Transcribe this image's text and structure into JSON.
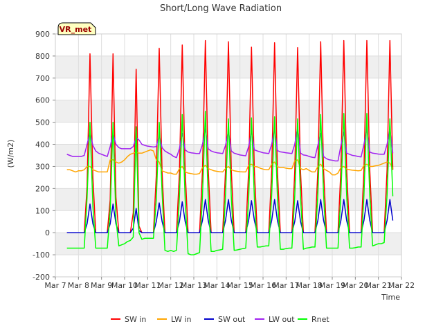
{
  "chart_data": {
    "type": "line",
    "title": "Short/Long Wave Radiation",
    "xlabel": "Time",
    "ylabel": "(W/m2)",
    "badge": "VR_met",
    "ylim": [
      -200,
      900
    ],
    "xlim": [
      "Mar 7",
      "Mar 22"
    ],
    "yticks": [
      -200,
      -100,
      0,
      100,
      200,
      300,
      400,
      500,
      600,
      700,
      800,
      900
    ],
    "xticks": [
      "Mar 7",
      "Mar 8",
      "Mar 9",
      "Mar 10",
      "Mar 11",
      "Mar 12",
      "Mar 13",
      "Mar 14",
      "Mar 15",
      "Mar 16",
      "Mar 17",
      "Mar 18",
      "Mar 19",
      "Mar 20",
      "Mar 21",
      "Mar 22"
    ],
    "grid": true,
    "banded_background": true,
    "legend_position": "bottom",
    "time_resolution": "3-hourly samples at 00,03,06,09,12,15,18,21 h, Mar 7 12:00 to Mar 21 15:00",
    "series": [
      {
        "name": "SW in",
        "color": "#ff0000",
        "start": "Mar 7 12:00",
        "step_hours": 3,
        "values": [
          0,
          0,
          0,
          0,
          0,
          0,
          0,
          210,
          810,
          250,
          0,
          0,
          0,
          0,
          0,
          150,
          810,
          160,
          0,
          0,
          0,
          0,
          0,
          90,
          740,
          30,
          0,
          0,
          0,
          0,
          0,
          260,
          835,
          270,
          0,
          0,
          0,
          0,
          0,
          270,
          850,
          280,
          0,
          0,
          0,
          0,
          0,
          280,
          870,
          290,
          0,
          0,
          0,
          0,
          0,
          280,
          865,
          280,
          0,
          0,
          0,
          0,
          0,
          280,
          840,
          280,
          0,
          0,
          0,
          0,
          0,
          280,
          860,
          280,
          0,
          0,
          0,
          0,
          0,
          275,
          838,
          275,
          0,
          0,
          0,
          0,
          0,
          280,
          865,
          280,
          0,
          0,
          0,
          0,
          0,
          285,
          870,
          285,
          0,
          0,
          0,
          0,
          0,
          285,
          870,
          285,
          0,
          0,
          0,
          0,
          0,
          285,
          870,
          285
        ]
      },
      {
        "name": "LW in",
        "color": "#ffa500",
        "start": "Mar 7 12:00",
        "step_hours": 3,
        "values": [
          285,
          285,
          280,
          275,
          280,
          280,
          285,
          300,
          300,
          285,
          280,
          275,
          275,
          275,
          275,
          330,
          330,
          320,
          315,
          320,
          330,
          345,
          355,
          360,
          365,
          360,
          360,
          365,
          370,
          375,
          370,
          330,
          320,
          280,
          275,
          270,
          270,
          265,
          265,
          290,
          300,
          275,
          270,
          268,
          265,
          265,
          268,
          295,
          305,
          290,
          285,
          280,
          278,
          276,
          275,
          290,
          300,
          285,
          280,
          278,
          276,
          275,
          275,
          305,
          310,
          300,
          298,
          292,
          288,
          285,
          285,
          310,
          320,
          298,
          295,
          295,
          292,
          290,
          290,
          325,
          330,
          290,
          285,
          290,
          282,
          275,
          275,
          300,
          310,
          290,
          282,
          275,
          262,
          262,
          270,
          295,
          300,
          288,
          285,
          283,
          282,
          280,
          282,
          305,
          310,
          300,
          300,
          303,
          305,
          310,
          315,
          320,
          315,
          290
        ]
      },
      {
        "name": "SW out",
        "color": "#0000cc",
        "start": "Mar 7 12:00",
        "step_hours": 3,
        "values": [
          0,
          0,
          0,
          0,
          0,
          0,
          0,
          40,
          130,
          40,
          0,
          0,
          0,
          0,
          0,
          40,
          130,
          40,
          0,
          0,
          0,
          0,
          0,
          20,
          110,
          10,
          0,
          0,
          0,
          0,
          0,
          50,
          135,
          50,
          0,
          0,
          0,
          0,
          0,
          50,
          140,
          50,
          0,
          0,
          0,
          0,
          0,
          55,
          150,
          55,
          0,
          0,
          0,
          0,
          0,
          55,
          150,
          55,
          0,
          0,
          0,
          0,
          0,
          55,
          145,
          55,
          0,
          0,
          0,
          0,
          0,
          55,
          150,
          55,
          0,
          0,
          0,
          0,
          0,
          50,
          145,
          50,
          0,
          0,
          0,
          0,
          0,
          55,
          150,
          55,
          0,
          0,
          0,
          0,
          0,
          55,
          150,
          55,
          0,
          0,
          0,
          0,
          0,
          55,
          150,
          55,
          0,
          0,
          0,
          0,
          0,
          55,
          150,
          55
        ]
      },
      {
        "name": "LW out",
        "color": "#a020f0",
        "start": "Mar 7 12:00",
        "step_hours": 3,
        "values": [
          355,
          350,
          345,
          345,
          345,
          345,
          350,
          400,
          455,
          395,
          370,
          360,
          355,
          350,
          345,
          390,
          450,
          400,
          385,
          380,
          380,
          380,
          380,
          390,
          430,
          420,
          400,
          395,
          392,
          390,
          388,
          390,
          440,
          385,
          370,
          362,
          355,
          345,
          340,
          380,
          450,
          375,
          365,
          362,
          360,
          358,
          358,
          400,
          470,
          380,
          370,
          365,
          362,
          360,
          358,
          395,
          460,
          370,
          360,
          356,
          352,
          350,
          348,
          390,
          460,
          375,
          370,
          366,
          362,
          360,
          358,
          400,
          470,
          372,
          366,
          364,
          362,
          360,
          358,
          400,
          475,
          360,
          352,
          350,
          345,
          342,
          340,
          395,
          450,
          345,
          335,
          330,
          328,
          325,
          325,
          395,
          455,
          360,
          355,
          350,
          348,
          345,
          343,
          400,
          470,
          365,
          360,
          358,
          356,
          355,
          355,
          400,
          470,
          360
        ]
      },
      {
        "name": "Rnet",
        "color": "#00ff00",
        "start": "Mar 7 12:00",
        "step_hours": 3,
        "values": [
          -70,
          -70,
          -70,
          -70,
          -70,
          -70,
          -70,
          160,
          500,
          120,
          -70,
          -70,
          -70,
          -70,
          -70,
          100,
          500,
          60,
          -60,
          -55,
          -50,
          -40,
          -35,
          -20,
          480,
          0,
          -30,
          -25,
          -25,
          -25,
          -25,
          150,
          500,
          180,
          -80,
          -85,
          -80,
          -85,
          -80,
          160,
          535,
          150,
          -95,
          -100,
          -100,
          -95,
          -90,
          165,
          550,
          160,
          -85,
          -85,
          -80,
          -78,
          -75,
          170,
          515,
          160,
          -80,
          -78,
          -75,
          -72,
          -70,
          155,
          520,
          155,
          -65,
          -65,
          -62,
          -60,
          -60,
          170,
          525,
          165,
          -75,
          -75,
          -72,
          -70,
          -70,
          165,
          515,
          160,
          -75,
          -70,
          -68,
          -65,
          -65,
          175,
          535,
          170,
          -70,
          -70,
          -70,
          -70,
          -70,
          175,
          540,
          170,
          -70,
          -70,
          -68,
          -65,
          -65,
          170,
          540,
          170,
          -60,
          -55,
          -50,
          -50,
          -45,
          170,
          515,
          165
        ]
      }
    ]
  }
}
